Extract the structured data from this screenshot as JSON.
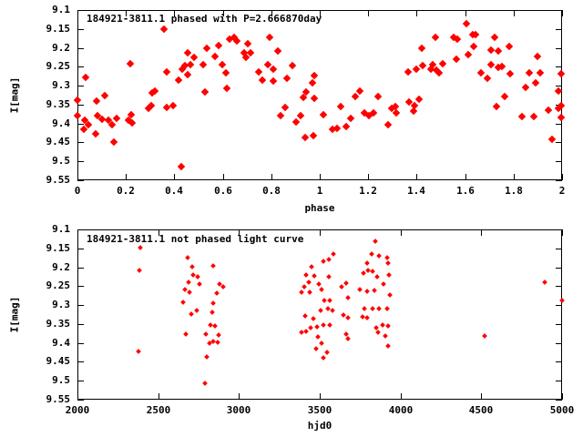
{
  "figure": {
    "background": "#ffffff",
    "text_color": "#000000",
    "point_color": "#ff0000"
  },
  "chart_data": [
    {
      "type": "scatter",
      "title": "184921-3811.1 phased with P=2.666870day",
      "xlabel": "phase",
      "ylabel": "I[mag]",
      "xlim": [
        0,
        2
      ],
      "ylim": [
        9.1,
        9.55
      ],
      "y_inverted": true,
      "grid": false,
      "legend": "none",
      "xtick_labels": [
        "0",
        "0.2",
        "0.4",
        "0.6",
        "0.8",
        "1",
        "1.2",
        "1.4",
        "1.6",
        "1.8",
        "2"
      ],
      "xtick_values": [
        0,
        0.2,
        0.4,
        0.6,
        0.8,
        1,
        1.2,
        1.4,
        1.6,
        1.8,
        2
      ],
      "ytick_labels": [
        "9.1",
        "9.15",
        "9.2",
        "9.25",
        "9.3",
        "9.35",
        "9.4",
        "9.45",
        "9.5",
        "9.55"
      ],
      "ytick_values": [
        9.1,
        9.15,
        9.2,
        9.25,
        9.3,
        9.35,
        9.4,
        9.45,
        9.5,
        9.55
      ],
      "marker": {
        "shape": "diamond",
        "size": 6,
        "color": "#ff0000"
      },
      "points": [
        [
          0.0,
          9.338
        ],
        [
          0.0,
          9.38
        ],
        [
          0.026,
          9.416
        ],
        [
          0.03,
          9.392
        ],
        [
          0.034,
          9.278
        ],
        [
          0.045,
          9.404
        ],
        [
          0.075,
          9.428
        ],
        [
          0.079,
          9.341
        ],
        [
          0.083,
          9.38
        ],
        [
          0.102,
          9.389
        ],
        [
          0.113,
          9.326
        ],
        [
          0.128,
          9.392
        ],
        [
          0.143,
          9.404
        ],
        [
          0.15,
          9.45
        ],
        [
          0.162,
          9.387
        ],
        [
          0.211,
          9.392
        ],
        [
          0.218,
          9.241
        ],
        [
          0.222,
          9.377
        ],
        [
          0.226,
          9.399
        ],
        [
          0.293,
          9.36
        ],
        [
          0.305,
          9.353
        ],
        [
          0.308,
          9.319
        ],
        [
          0.32,
          9.314
        ],
        [
          0.357,
          9.151
        ],
        [
          0.368,
          9.263
        ],
        [
          0.368,
          9.358
        ],
        [
          0.395,
          9.353
        ],
        [
          0.417,
          9.285
        ],
        [
          0.429,
          9.514
        ],
        [
          0.432,
          9.256
        ],
        [
          0.444,
          9.246
        ],
        [
          0.455,
          9.212
        ],
        [
          0.455,
          9.27
        ],
        [
          0.466,
          9.244
        ],
        [
          0.481,
          9.224
        ],
        [
          0.519,
          9.244
        ],
        [
          0.526,
          9.317
        ],
        [
          0.534,
          9.2
        ],
        [
          0.568,
          9.222
        ],
        [
          0.583,
          9.195
        ],
        [
          0.598,
          9.244
        ],
        [
          0.613,
          9.265
        ],
        [
          0.617,
          9.307
        ],
        [
          0.628,
          9.178
        ],
        [
          0.647,
          9.173
        ],
        [
          0.658,
          9.183
        ],
        [
          0.688,
          9.212
        ],
        [
          0.695,
          9.224
        ],
        [
          0.703,
          9.19
        ],
        [
          0.714,
          9.214
        ],
        [
          0.748,
          9.263
        ],
        [
          0.763,
          9.285
        ],
        [
          0.786,
          9.244
        ],
        [
          0.793,
          9.171
        ],
        [
          0.808,
          9.256
        ],
        [
          0.808,
          9.287
        ],
        [
          0.827,
          9.209
        ],
        [
          0.838,
          9.38
        ],
        [
          0.857,
          9.358
        ],
        [
          0.865,
          9.28
        ],
        [
          0.887,
          9.246
        ],
        [
          0.902,
          9.397
        ],
        [
          0.921,
          9.38
        ],
        [
          0.932,
          9.331
        ],
        [
          0.94,
          9.438
        ],
        [
          0.944,
          9.317
        ],
        [
          0.97,
          9.292
        ],
        [
          0.974,
          9.433
        ],
        [
          0.977,
          9.273
        ],
        [
          0.977,
          9.334
        ],
        [
          1.015,
          9.377
        ],
        [
          1.053,
          9.416
        ],
        [
          1.071,
          9.414
        ],
        [
          1.086,
          9.355
        ],
        [
          1.109,
          9.409
        ],
        [
          1.128,
          9.387
        ],
        [
          1.147,
          9.329
        ],
        [
          1.165,
          9.314
        ],
        [
          1.184,
          9.372
        ],
        [
          1.203,
          9.38
        ],
        [
          1.222,
          9.372
        ],
        [
          1.241,
          9.329
        ],
        [
          1.282,
          9.404
        ],
        [
          1.297,
          9.36
        ],
        [
          1.312,
          9.355
        ],
        [
          1.316,
          9.372
        ],
        [
          1.365,
          9.263
        ],
        [
          1.368,
          9.343
        ],
        [
          1.387,
          9.368
        ],
        [
          1.391,
          9.353
        ],
        [
          1.398,
          9.256
        ],
        [
          1.41,
          9.336
        ],
        [
          1.421,
          9.202
        ],
        [
          1.425,
          9.246
        ],
        [
          1.459,
          9.256
        ],
        [
          1.466,
          9.244
        ],
        [
          1.477,
          9.173
        ],
        [
          1.481,
          9.258
        ],
        [
          1.492,
          9.265
        ],
        [
          1.508,
          9.241
        ],
        [
          1.553,
          9.171
        ],
        [
          1.564,
          9.231
        ],
        [
          1.568,
          9.178
        ],
        [
          1.605,
          9.137
        ],
        [
          1.613,
          9.219
        ],
        [
          1.632,
          9.166
        ],
        [
          1.643,
          9.166
        ],
        [
          1.635,
          9.197
        ],
        [
          1.665,
          9.265
        ],
        [
          1.692,
          9.28
        ],
        [
          1.707,
          9.207
        ],
        [
          1.707,
          9.244
        ],
        [
          1.722,
          9.171
        ],
        [
          1.729,
          9.355
        ],
        [
          1.737,
          9.209
        ],
        [
          1.737,
          9.251
        ],
        [
          1.752,
          9.248
        ],
        [
          1.763,
          9.329
        ],
        [
          1.782,
          9.197
        ],
        [
          1.786,
          9.268
        ],
        [
          1.835,
          9.382
        ],
        [
          1.85,
          9.304
        ],
        [
          1.864,
          9.265
        ],
        [
          1.884,
          9.382
        ],
        [
          1.891,
          9.292
        ],
        [
          1.898,
          9.222
        ],
        [
          1.91,
          9.265
        ],
        [
          1.944,
          9.365
        ],
        [
          1.959,
          9.441
        ],
        [
          1.985,
          9.314
        ],
        [
          1.985,
          9.36
        ],
        [
          1.995,
          9.268
        ],
        [
          1.995,
          9.385
        ],
        [
          1.995,
          9.353
        ]
      ]
    },
    {
      "type": "scatter",
      "title": "184921-3811.1 not phased light curve",
      "xlabel": "hjd0",
      "ylabel": "I[mag]",
      "xlim": [
        2000,
        5000
      ],
      "ylim": [
        9.1,
        9.55
      ],
      "y_inverted": true,
      "grid": false,
      "legend": "none",
      "xtick_labels": [
        "2000",
        "2500",
        "3000",
        "3500",
        "4000",
        "4500",
        "5000"
      ],
      "xtick_values": [
        2000,
        2500,
        3000,
        3500,
        4000,
        4500,
        5000
      ],
      "ytick_labels": [
        "9.1",
        "9.15",
        "9.2",
        "9.25",
        "9.3",
        "9.35",
        "9.4",
        "9.45",
        "9.5",
        "9.55"
      ],
      "ytick_values": [
        9.1,
        9.15,
        9.2,
        9.25,
        9.3,
        9.35,
        9.4,
        9.45,
        9.5,
        9.55
      ],
      "marker": {
        "shape": "diamond",
        "size": 4,
        "color": "#ff0000"
      },
      "points": [
        [
          2378,
          9.422
        ],
        [
          2383,
          9.208
        ],
        [
          2390,
          9.148
        ],
        [
          2654,
          9.292
        ],
        [
          2665,
          9.259
        ],
        [
          2671,
          9.377
        ],
        [
          2682,
          9.175
        ],
        [
          2688,
          9.24
        ],
        [
          2693,
          9.266
        ],
        [
          2705,
          9.324
        ],
        [
          2710,
          9.199
        ],
        [
          2716,
          9.22
        ],
        [
          2739,
          9.314
        ],
        [
          2744,
          9.225
        ],
        [
          2756,
          9.244
        ],
        [
          2789,
          9.506
        ],
        [
          2795,
          9.377
        ],
        [
          2801,
          9.437
        ],
        [
          2818,
          9.401
        ],
        [
          2823,
          9.353
        ],
        [
          2835,
          9.319
        ],
        [
          2840,
          9.196
        ],
        [
          2840,
          9.295
        ],
        [
          2840,
          9.396
        ],
        [
          2851,
          9.355
        ],
        [
          2863,
          9.268
        ],
        [
          2868,
          9.398
        ],
        [
          2874,
          9.38
        ],
        [
          2880,
          9.244
        ],
        [
          2902,
          9.252
        ],
        [
          3387,
          9.266
        ],
        [
          3387,
          9.372
        ],
        [
          3404,
          9.252
        ],
        [
          3410,
          9.329
        ],
        [
          3415,
          9.22
        ],
        [
          3415,
          9.37
        ],
        [
          3432,
          9.24
        ],
        [
          3438,
          9.266
        ],
        [
          3444,
          9.36
        ],
        [
          3449,
          9.199
        ],
        [
          3461,
          9.336
        ],
        [
          3466,
          9.223
        ],
        [
          3477,
          9.415
        ],
        [
          3483,
          9.357
        ],
        [
          3489,
          9.384
        ],
        [
          3494,
          9.244
        ],
        [
          3506,
          9.314
        ],
        [
          3511,
          9.259
        ],
        [
          3511,
          9.401
        ],
        [
          3523,
          9.184
        ],
        [
          3523,
          9.353
        ],
        [
          3523,
          9.439
        ],
        [
          3528,
          9.288
        ],
        [
          3545,
          9.425
        ],
        [
          3551,
          9.309
        ],
        [
          3556,
          9.179
        ],
        [
          3556,
          9.225
        ],
        [
          3562,
          9.288
        ],
        [
          3562,
          9.353
        ],
        [
          3579,
          9.314
        ],
        [
          3585,
          9.165
        ],
        [
          3635,
          9.252
        ],
        [
          3647,
          9.326
        ],
        [
          3664,
          9.242
        ],
        [
          3664,
          9.377
        ],
        [
          3675,
          9.281
        ],
        [
          3675,
          9.334
        ],
        [
          3675,
          9.389
        ],
        [
          3748,
          9.259
        ],
        [
          3765,
          9.331
        ],
        [
          3771,
          9.216
        ],
        [
          3776,
          9.31
        ],
        [
          3793,
          9.189
        ],
        [
          3793,
          9.264
        ],
        [
          3793,
          9.334
        ],
        [
          3799,
          9.208
        ],
        [
          3821,
          9.165
        ],
        [
          3827,
          9.211
        ],
        [
          3827,
          9.31
        ],
        [
          3838,
          9.262
        ],
        [
          3844,
          9.131
        ],
        [
          3850,
          9.36
        ],
        [
          3855,
          9.225
        ],
        [
          3861,
          9.372
        ],
        [
          3866,
          9.17
        ],
        [
          3866,
          9.31
        ],
        [
          3889,
          9.353
        ],
        [
          3895,
          9.244
        ],
        [
          3906,
          9.381
        ],
        [
          3917,
          9.175
        ],
        [
          3917,
          9.31
        ],
        [
          3923,
          9.189
        ],
        [
          3923,
          9.355
        ],
        [
          3923,
          9.408
        ],
        [
          3928,
          9.22
        ],
        [
          3934,
          9.274
        ],
        [
          4521,
          9.381
        ],
        [
          4893,
          9.24
        ],
        [
          5000,
          9.288
        ]
      ]
    }
  ]
}
